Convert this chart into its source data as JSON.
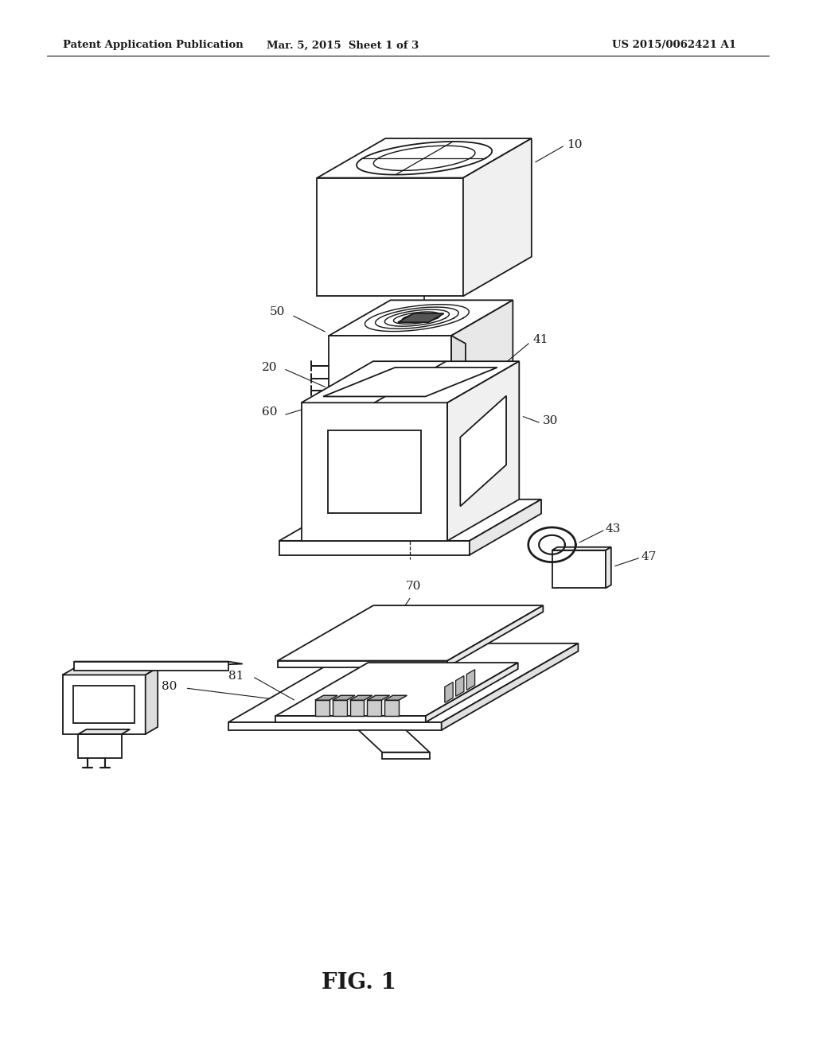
{
  "background_color": "#ffffff",
  "header_left": "Patent Application Publication",
  "header_center": "Mar. 5, 2015  Sheet 1 of 3",
  "header_right": "US 2015/0062421 A1",
  "footer_label": "FIG. 1",
  "line_color": "#1a1a1a",
  "line_width": 1.3
}
